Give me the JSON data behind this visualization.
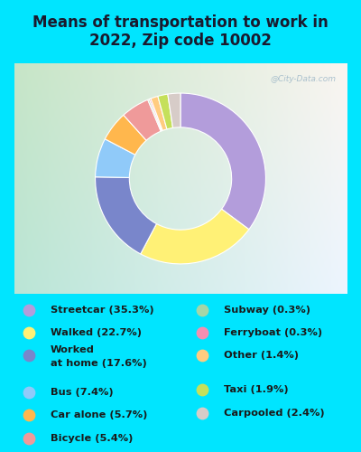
{
  "title": "Means of transportation to work in\n2022, Zip code 10002",
  "title_fontsize": 12,
  "background_outer": "#00e5ff",
  "slices": [
    {
      "label": "Streetcar (35.3%)",
      "value": 35.3,
      "color": "#b39ddb"
    },
    {
      "label": "Walked (22.7%)",
      "value": 22.7,
      "color": "#fff176"
    },
    {
      "label": "Worked\nat home (17.6%)",
      "value": 17.6,
      "color": "#7986cb"
    },
    {
      "label": "Bus (7.4%)",
      "value": 7.4,
      "color": "#90caf9"
    },
    {
      "label": "Car alone (5.7%)",
      "value": 5.7,
      "color": "#ffb74d"
    },
    {
      "label": "Bicycle (5.4%)",
      "value": 5.4,
      "color": "#ef9a9a"
    },
    {
      "label": "Subway (0.3%)",
      "value": 0.3,
      "color": "#a5d6a7"
    },
    {
      "label": "Ferryboat (0.3%)",
      "value": 0.3,
      "color": "#f48fb1"
    },
    {
      "label": "Other (1.4%)",
      "value": 1.4,
      "color": "#ffcc80"
    },
    {
      "label": "Taxi (1.9%)",
      "value": 1.9,
      "color": "#c5e05a"
    },
    {
      "label": "Carpooled (2.4%)",
      "value": 2.4,
      "color": "#d7ccc8"
    }
  ],
  "legend_left": [
    {
      "label": "Streetcar (35.3%)",
      "color": "#b39ddb"
    },
    {
      "label": "Walked (22.7%)",
      "color": "#fff176"
    },
    {
      "label": "Worked\nat home (17.6%)",
      "color": "#7986cb"
    },
    {
      "label": "Bus (7.4%)",
      "color": "#90caf9"
    },
    {
      "label": "Car alone (5.7%)",
      "color": "#ffb74d"
    },
    {
      "label": "Bicycle (5.4%)",
      "color": "#ef9a9a"
    }
  ],
  "legend_right": [
    {
      "label": "Subway (0.3%)",
      "color": "#a5d6a7"
    },
    {
      "label": "Ferryboat (0.3%)",
      "color": "#f48fb1"
    },
    {
      "label": "Other (1.4%)",
      "color": "#ffcc80"
    },
    {
      "label": "Taxi (1.9%)",
      "color": "#c5e05a"
    },
    {
      "label": "Carpooled (2.4%)",
      "color": "#d7ccc8"
    }
  ],
  "watermark": "@City-Data.com",
  "chart_bg_colors": [
    "#d0ead8",
    "#e8f5e9",
    "#e0f2f1",
    "#cfe8f0"
  ],
  "title_color": "#1a1a2e"
}
